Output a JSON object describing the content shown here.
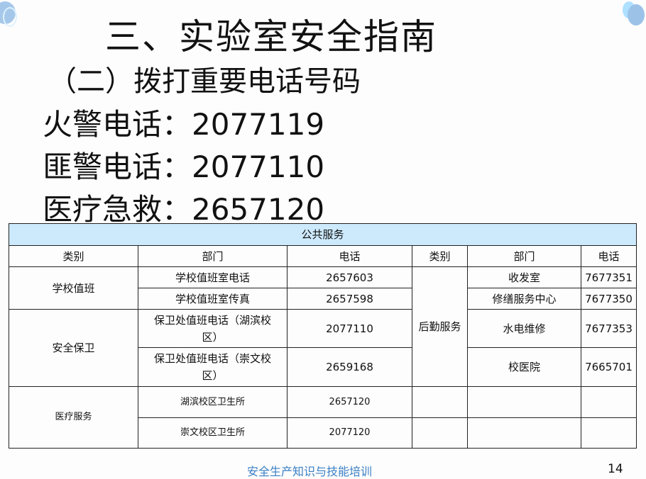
{
  "title": "三、实验室安全指南",
  "subtitle": "（二）拨打重要电话号码",
  "lines": [
    "火警电话：2077119",
    "匪警电话：2077110",
    "医疗急救：2657120"
  ],
  "table": {
    "caption": "公共服务",
    "headers": [
      "类别",
      "部门",
      "电话",
      "类别",
      "部门",
      "电话"
    ],
    "left": [
      {
        "category": "学校值班",
        "rows": [
          {
            "dept": "学校值班室电话",
            "phone": "2657603"
          },
          {
            "dept": "学校值班室传真",
            "phone": "2657598"
          }
        ]
      },
      {
        "category": "安全保卫",
        "rows": [
          {
            "dept": "保卫处值班电话（湖滨校区）",
            "phone": "2077110"
          },
          {
            "dept": "保卫处值班电话（崇文校区）",
            "phone": "2659168"
          }
        ]
      },
      {
        "category": "医疗服务",
        "rows": [
          {
            "dept": "湖滨校区卫生所",
            "phone": "2657120"
          },
          {
            "dept": "崇文校区卫生所",
            "phone": "2077120"
          }
        ]
      }
    ],
    "right": {
      "category": "后勤服务",
      "rows": [
        {
          "dept": "收发室",
          "phone": "7677351"
        },
        {
          "dept": "修缮服务中心",
          "phone": "7677350"
        },
        {
          "dept": "水电维修",
          "phone": "7677353"
        },
        {
          "dept": "校医院",
          "phone": "7665701"
        }
      ]
    }
  },
  "footer": "安全生产知识与技能培训",
  "page_number": "14",
  "colors": {
    "header_bg": "#cdeafd",
    "footer_text": "#3a7fc4"
  }
}
